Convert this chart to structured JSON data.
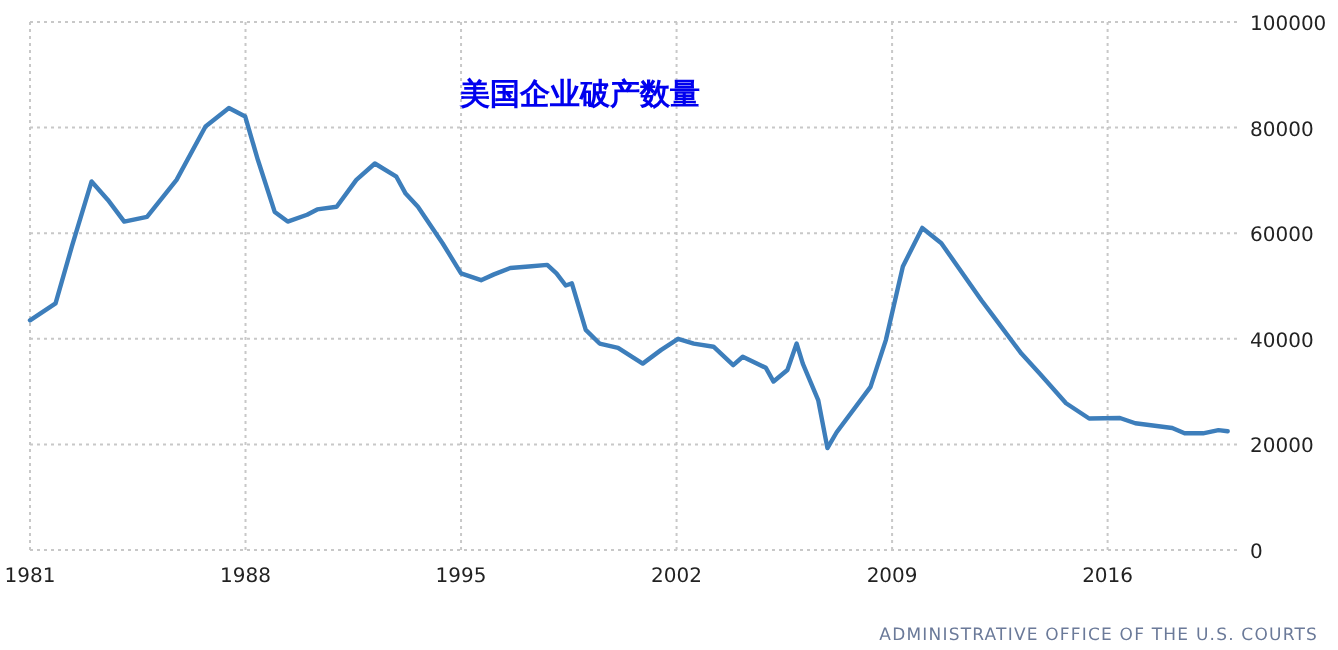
{
  "chart_data": {
    "type": "line",
    "title": "美国企业破产数量",
    "annotations": [
      "ADMINISTRATIVE OFFICE OF THE U.S. COURTS"
    ],
    "x": [
      1981.0,
      1981.83,
      1982.36,
      1983.0,
      1983.53,
      1984.06,
      1984.8,
      1985.76,
      1986.7,
      1987.46,
      1987.99,
      1988.4,
      1988.95,
      1989.37,
      1990.0,
      1990.33,
      1990.96,
      1991.6,
      1992.2,
      1992.9,
      1993.2,
      1993.6,
      1994.4,
      1995.0,
      1995.65,
      1996.07,
      1996.6,
      1997.2,
      1997.8,
      1998.1,
      1998.4,
      1998.6,
      1999.05,
      1999.5,
      2000.1,
      2000.9,
      2001.5,
      2002.05,
      2002.56,
      2003.2,
      2003.84,
      2004.15,
      2004.9,
      2005.15,
      2005.6,
      2005.9,
      2006.1,
      2006.6,
      2006.9,
      2007.2,
      2008.3,
      2008.8,
      2009.35,
      2009.98,
      2010.6,
      2011.9,
      2012.3,
      2013.2,
      2013.8,
      2014.65,
      2015.4,
      2016.4,
      2016.9,
      2018.1,
      2018.5,
      2019.1,
      2019.6,
      2019.9
    ],
    "series": [
      {
        "color": "#3d7ebb",
        "values": [
          43500,
          46700,
          57500,
          69800,
          66300,
          62200,
          63100,
          70100,
          80200,
          83700,
          82100,
          73900,
          64000,
          62200,
          63500,
          64500,
          65000,
          70100,
          73200,
          70700,
          67500,
          65000,
          58100,
          52400,
          51100,
          52200,
          53400,
          53700,
          54000,
          52400,
          50100,
          50500,
          41700,
          39100,
          38300,
          35300,
          37900,
          40000,
          39100,
          38500,
          35000,
          36600,
          34500,
          31900,
          34100,
          39100,
          35300,
          28400,
          19300,
          22300,
          30900,
          39800,
          53700,
          61000,
          58100,
          47300,
          44200,
          37200,
          33400,
          27800,
          24900,
          25000,
          24000,
          23100,
          22100,
          22100,
          22700,
          22500
        ]
      }
    ],
    "xlim": [
      1981,
      2020.3
    ],
    "ylim": [
      0,
      100000
    ],
    "xticks": [
      1981,
      1988,
      1995,
      2002,
      2009,
      2016
    ],
    "yticks": [
      0,
      20000,
      40000,
      60000,
      80000,
      100000
    ],
    "grid": true,
    "line_style": "solid",
    "marker": "none"
  }
}
